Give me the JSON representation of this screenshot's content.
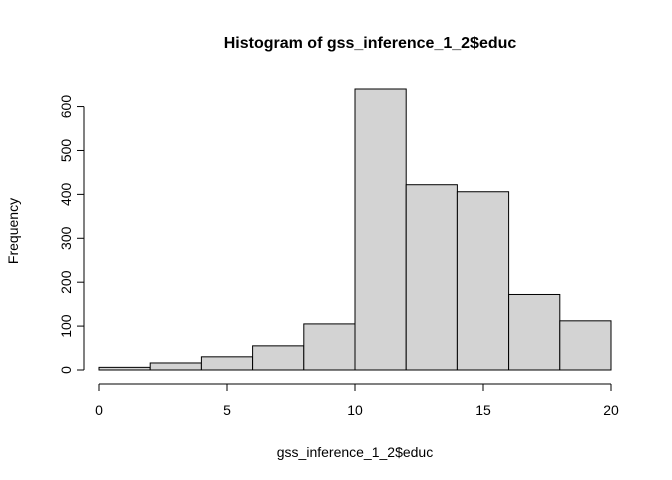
{
  "chart_data": {
    "type": "bar",
    "title": "Histogram of gss_inference_1_2$educ",
    "xlabel": "gss_inference_1_2$educ",
    "ylabel": "Frequency",
    "bins": [
      {
        "start": 0,
        "end": 2,
        "count": 6
      },
      {
        "start": 2,
        "end": 4,
        "count": 16
      },
      {
        "start": 4,
        "end": 6,
        "count": 30
      },
      {
        "start": 6,
        "end": 8,
        "count": 55
      },
      {
        "start": 8,
        "end": 10,
        "count": 105
      },
      {
        "start": 10,
        "end": 12,
        "count": 640
      },
      {
        "start": 12,
        "end": 14,
        "count": 422
      },
      {
        "start": 14,
        "end": 16,
        "count": 406
      },
      {
        "start": 16,
        "end": 18,
        "count": 172
      },
      {
        "start": 18,
        "end": 20,
        "count": 112
      }
    ],
    "xticks": [
      0,
      5,
      10,
      15,
      20
    ],
    "yticks": [
      0,
      100,
      200,
      300,
      400,
      500,
      600
    ],
    "xlim": [
      0,
      20
    ],
    "ylim": [
      0,
      640
    ],
    "grid": false,
    "bar_color": "#d3d3d3",
    "edge_color": "#000000"
  }
}
